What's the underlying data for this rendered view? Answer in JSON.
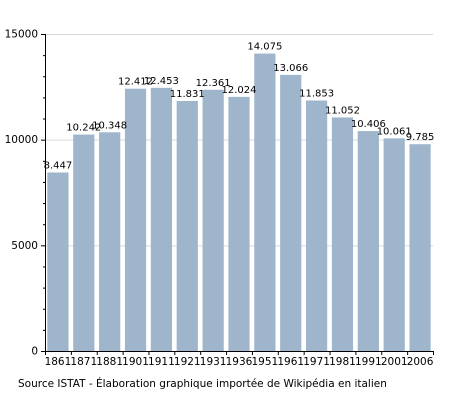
{
  "chart_data": {
    "type": "bar",
    "categories": [
      "1861",
      "1871",
      "1881",
      "1901",
      "1911",
      "1921",
      "1931",
      "1936",
      "1951",
      "1961",
      "1971",
      "1981",
      "1991",
      "2001",
      "2006"
    ],
    "values": [
      8447,
      10242,
      10348,
      12412,
      12453,
      11831,
      12361,
      12024,
      14075,
      13066,
      11853,
      11052,
      10406,
      10061,
      9785
    ],
    "data_labels": [
      "8.447",
      "10.242",
      "10.348",
      "12.412",
      "12.453",
      "11.831",
      "12.361",
      "12.024",
      "14.075",
      "13.066",
      "11.853",
      "11.052",
      "10.406",
      "10.061",
      "9.785"
    ],
    "y_ticks": [
      0,
      5000,
      10000,
      15000
    ],
    "y_tick_labels": [
      "0",
      "5000",
      "10000",
      "15000"
    ],
    "ylim": [
      0,
      15000
    ],
    "grid": true,
    "bar_color": "#9fb5cc",
    "gridline_color": "#d9d9d9"
  },
  "caption": "Source ISTAT - Élaboration graphique importée de Wikipédia en italien"
}
